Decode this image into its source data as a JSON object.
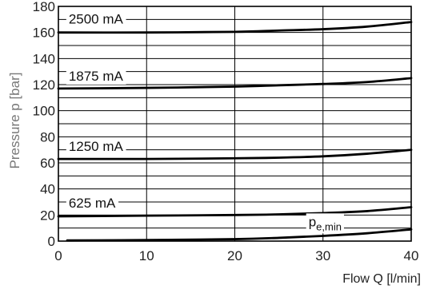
{
  "chart_data": {
    "type": "line",
    "xlabel": "Flow Q [l/min]",
    "ylabel": "Pressure p [bar]",
    "xlim": [
      0,
      40
    ],
    "ylim": [
      0,
      180
    ],
    "xticks": [
      0,
      10,
      20,
      30,
      40
    ],
    "yticks": [
      0,
      20,
      40,
      60,
      80,
      100,
      120,
      140,
      160,
      180
    ],
    "grid": true,
    "series": [
      {
        "name": "2500 mA",
        "x": [
          0,
          10,
          20,
          25,
          30,
          35,
          40
        ],
        "y": [
          160,
          160,
          160.5,
          161.5,
          162.5,
          164.5,
          168
        ]
      },
      {
        "name": "1875 mA",
        "x": [
          0,
          10,
          20,
          25,
          30,
          35,
          40
        ],
        "y": [
          117,
          117.5,
          118.5,
          119.5,
          120.5,
          122,
          125
        ]
      },
      {
        "name": "1250 mA",
        "x": [
          0,
          10,
          20,
          25,
          30,
          35,
          40
        ],
        "y": [
          63,
          63,
          63.5,
          64,
          65,
          67,
          70
        ]
      },
      {
        "name": "625 mA",
        "x": [
          0,
          10,
          20,
          25,
          30,
          35,
          40
        ],
        "y": [
          19,
          19.5,
          20,
          20.5,
          21.5,
          23,
          26
        ]
      },
      {
        "name": "p",
        "name_sub": "e,min",
        "x": [
          1,
          10,
          20,
          25,
          30,
          35,
          40
        ],
        "y": [
          0.5,
          0.8,
          1.5,
          2.5,
          4,
          6,
          9
        ]
      }
    ]
  }
}
